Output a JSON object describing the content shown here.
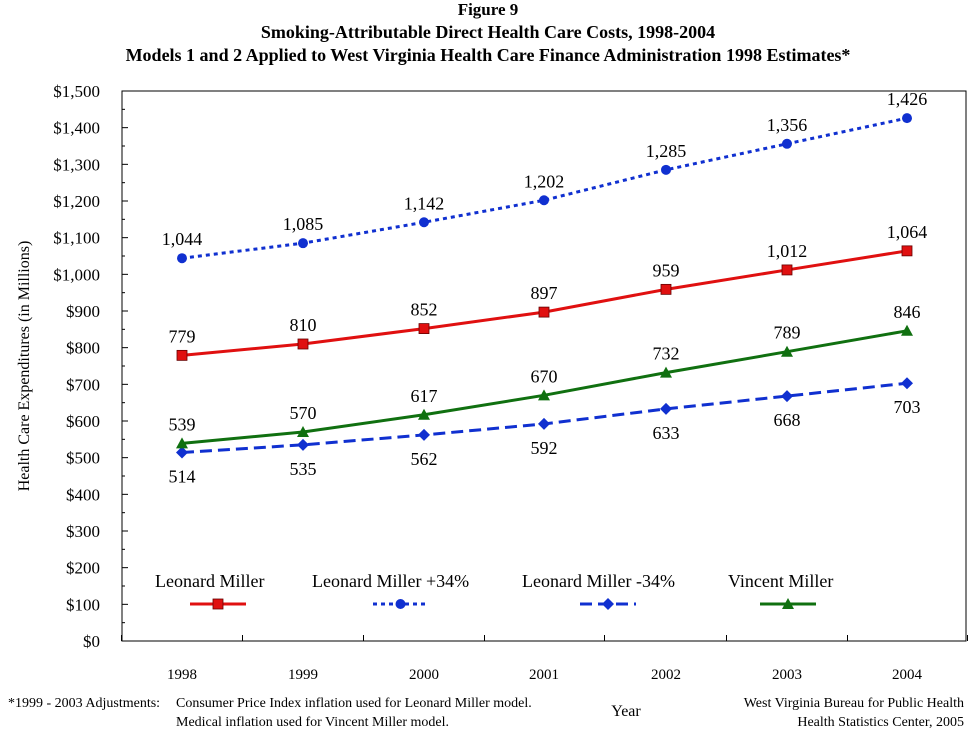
{
  "figure": {
    "label": "Figure 9",
    "title": "Smoking-Attributable Direct Health Care Costs, 1998-2004",
    "subtitle": "Models 1 and 2 Applied to West Virginia Health Care Finance Administration 1998 Estimates*"
  },
  "chart_data": {
    "type": "line",
    "x": [
      "1998",
      "1999",
      "2000",
      "2001",
      "2002",
      "2003",
      "2004"
    ],
    "xlabel": "Year",
    "ylabel": "Health Care Expenditures (in Millions)",
    "ylim": [
      0,
      1500
    ],
    "yticks": [
      "$0",
      "$100",
      "$200",
      "$300",
      "$400",
      "$500",
      "$600",
      "$700",
      "$800",
      "$900",
      "$1,000",
      "$1,100",
      "$1,200",
      "$1,300",
      "$1,400",
      "$1,500"
    ],
    "grid": false,
    "legend_position": "bottom",
    "series": [
      {
        "name": "Leonard Miller",
        "values": [
          779,
          810,
          852,
          897,
          959,
          1012,
          1064
        ],
        "labels": [
          "779",
          "810",
          "852",
          "897",
          "959",
          "1,012",
          "1,064"
        ],
        "color": "#e01010",
        "dash": "solid",
        "marker": "square",
        "label_position": "above"
      },
      {
        "name": "Leonard Miller +34%",
        "values": [
          1044,
          1085,
          1142,
          1202,
          1285,
          1356,
          1426
        ],
        "labels": [
          "1,044",
          "1,085",
          "1,142",
          "1,202",
          "1,285",
          "1,356",
          "1,426"
        ],
        "color": "#1030d0",
        "dash": "dotted",
        "marker": "circle",
        "label_position": "above"
      },
      {
        "name": "Leonard Miller -34%",
        "values": [
          514,
          535,
          562,
          592,
          633,
          668,
          703
        ],
        "labels": [
          "514",
          "535",
          "562",
          "592",
          "633",
          "668",
          "703"
        ],
        "color": "#1030d0",
        "dash": "dashed",
        "marker": "diamond",
        "label_position": "below"
      },
      {
        "name": "Vincent Miller",
        "values": [
          539,
          570,
          617,
          670,
          732,
          789,
          846
        ],
        "labels": [
          "539",
          "570",
          "617",
          "670",
          "732",
          "789",
          "846"
        ],
        "color": "#107010",
        "dash": "solid",
        "marker": "triangle",
        "label_position": "above"
      }
    ]
  },
  "footnote": {
    "prefix": "*1999 - 2003 Adjustments:",
    "line1": "Consumer Price Index inflation used for Leonard Miller model.",
    "line2": "Medical inflation used for Vincent Miller model."
  },
  "source": {
    "line1": "West Virginia Bureau for Public Health",
    "line2": "Health Statistics Center, 2005"
  }
}
